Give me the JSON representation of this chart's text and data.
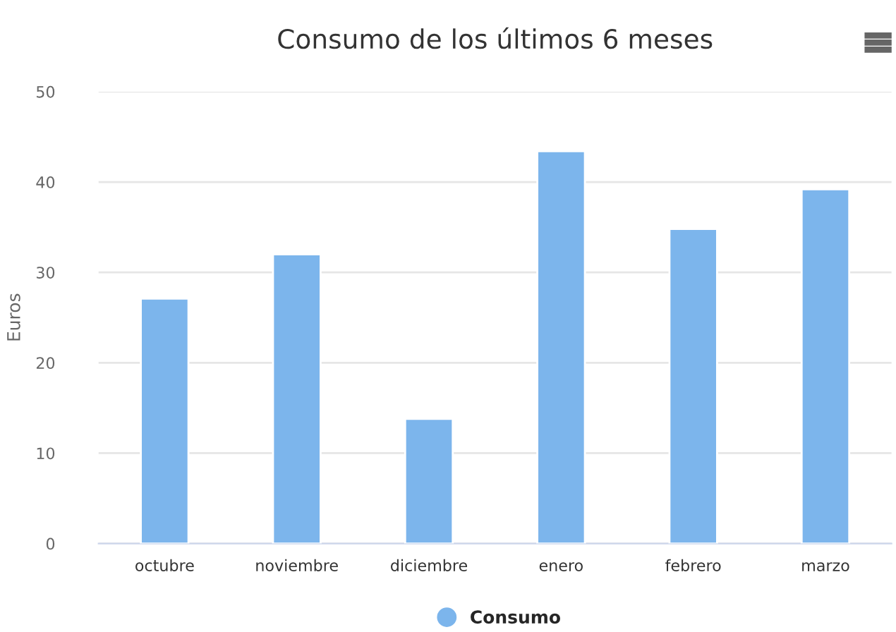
{
  "chart_data": {
    "type": "bar",
    "title": "Consumo de los últimos 6 meses",
    "ylabel": "Euros",
    "categories": [
      "octubre",
      "noviembre",
      "diciembre",
      "enero",
      "febrero",
      "marzo"
    ],
    "series": [
      {
        "name": "Consumo",
        "color": "#7cb5ec",
        "values": [
          27.1,
          32.0,
          13.8,
          43.4,
          34.8,
          39.2
        ]
      }
    ],
    "ylim": [
      0,
      50
    ],
    "yticks": [
      0,
      10,
      20,
      30,
      40,
      50
    ],
    "grid": "y",
    "legend": "bottom"
  }
}
